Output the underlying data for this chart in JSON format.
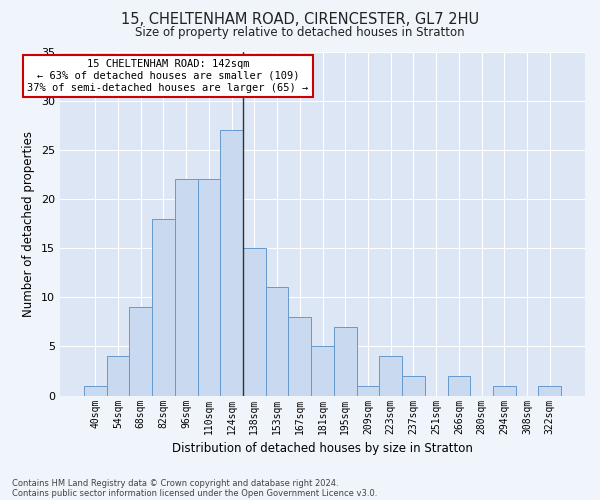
{
  "title1": "15, CHELTENHAM ROAD, CIRENCESTER, GL7 2HU",
  "title2": "Size of property relative to detached houses in Stratton",
  "xlabel": "Distribution of detached houses by size in Stratton",
  "ylabel": "Number of detached properties",
  "bin_labels": [
    "40sqm",
    "54sqm",
    "68sqm",
    "82sqm",
    "96sqm",
    "110sqm",
    "124sqm",
    "138sqm",
    "153sqm",
    "167sqm",
    "181sqm",
    "195sqm",
    "209sqm",
    "223sqm",
    "237sqm",
    "251sqm",
    "266sqm",
    "280sqm",
    "294sqm",
    "308sqm",
    "322sqm"
  ],
  "bar_values": [
    1,
    4,
    9,
    18,
    22,
    22,
    27,
    15,
    11,
    8,
    5,
    7,
    1,
    4,
    2,
    0,
    2,
    0,
    1,
    0,
    1
  ],
  "bar_color": "#c9d9f0",
  "bar_edge_color": "#6699cc",
  "vline_index": 7,
  "vline_color": "#333333",
  "annotation_title": "15 CHELTENHAM ROAD: 142sqm",
  "annotation_line1": "← 63% of detached houses are smaller (109)",
  "annotation_line2": "37% of semi-detached houses are larger (65) →",
  "annotation_box_color": "#ffffff",
  "annotation_box_edge": "#cc0000",
  "ylim": [
    0,
    35
  ],
  "yticks": [
    0,
    5,
    10,
    15,
    20,
    25,
    30,
    35
  ],
  "bg_color": "#dce6f5",
  "fig_bg_color": "#f0f4fb",
  "footer1": "Contains HM Land Registry data © Crown copyright and database right 2024.",
  "footer2": "Contains public sector information licensed under the Open Government Licence v3.0."
}
